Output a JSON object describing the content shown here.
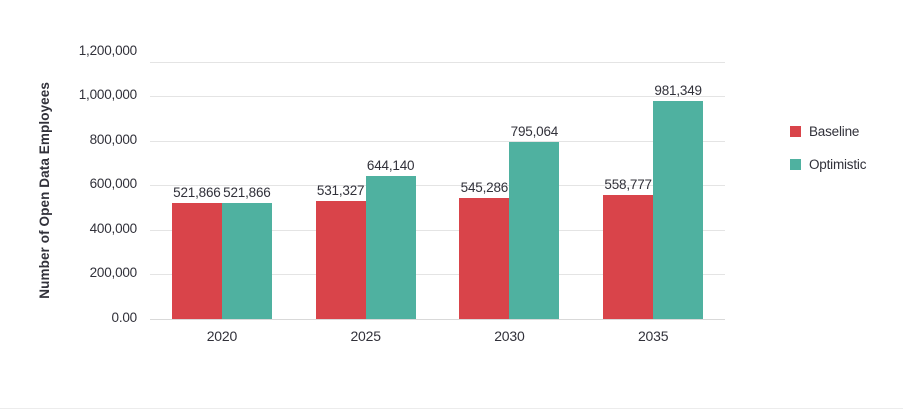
{
  "chart_data": {
    "type": "bar",
    "title": "",
    "xlabel": "",
    "ylabel": "Number of Open Data Employees",
    "categories": [
      "2020",
      "2025",
      "2030",
      "2035"
    ],
    "series": [
      {
        "name": "Baseline",
        "color": "#d9444a",
        "values": [
          521866,
          531327,
          545286,
          558777
        ],
        "value_labels": [
          "521,866",
          "531,327",
          "545,286",
          "558,777"
        ]
      },
      {
        "name": "Optimistic",
        "color": "#4fb1a0",
        "values": [
          521866,
          644140,
          795064,
          981349
        ],
        "value_labels": [
          "521,866",
          "644,140",
          "795,064",
          "981,349"
        ]
      }
    ],
    "y_axis": {
      "ticks": [
        {
          "label": "1,200,000",
          "value": 1200000
        },
        {
          "label": "1,000,000",
          "value": 1000000
        },
        {
          "label": "800,000",
          "value": 800000
        },
        {
          "label": "600,000",
          "value": 600000
        },
        {
          "label": "400,000",
          "value": 400000
        },
        {
          "label": "200,000",
          "value": 200000
        },
        {
          "label": "0.00",
          "value": 0
        }
      ],
      "plot_top_value": 1150000
    },
    "ylim": [
      0,
      1200000
    ],
    "grid": true,
    "legend_position": "right",
    "bar_value_labels_shown": true
  },
  "colors": {
    "baseline": "#d9444a",
    "optimistic": "#4fb1a0",
    "text": "#31313a",
    "gridline": "#e4e4e4",
    "axis_line": "#d9d9d9",
    "background": "#ffffff"
  }
}
